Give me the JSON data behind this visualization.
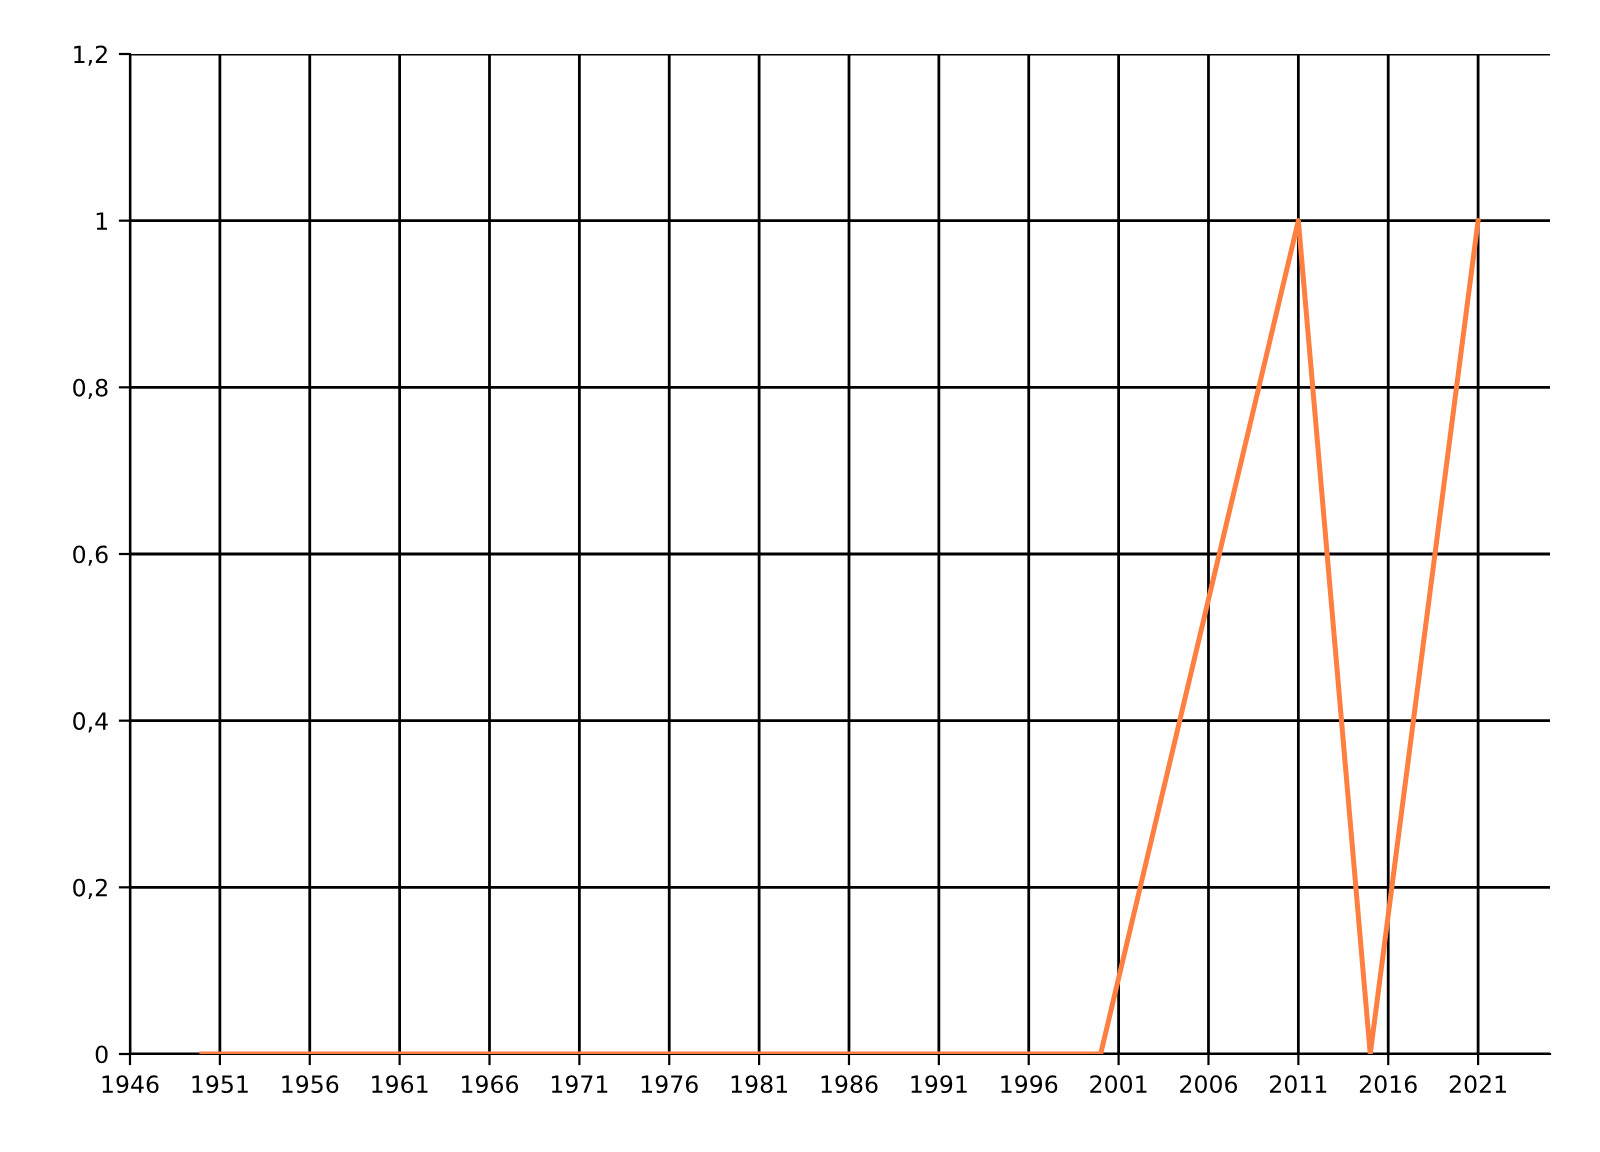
{
  "chart_data": {
    "type": "line",
    "x": [
      1950,
      2000,
      2011,
      2015,
      2021
    ],
    "series": [
      {
        "color": "#ff7f40",
        "values": [
          0,
          0,
          1,
          0,
          1
        ]
      }
    ],
    "xlim": [
      1946,
      2025
    ],
    "xticks": [
      1946,
      1951,
      1956,
      1961,
      1966,
      1971,
      1976,
      1981,
      1986,
      1991,
      1996,
      2001,
      2006,
      2011,
      2016,
      2021
    ],
    "ylim": [
      0,
      1.2
    ],
    "yticks": [
      0,
      {
        "value": 0.2,
        "label": "0,2"
      },
      {
        "value": 0.4,
        "label": "0,4"
      },
      {
        "value": 0.6,
        "label": "0,6"
      },
      {
        "value": 0.8,
        "label": "0,8"
      },
      1,
      {
        "value": 1.2,
        "label": "1,2"
      }
    ],
    "grid": true,
    "marker": "none",
    "line_style": "solid"
  }
}
